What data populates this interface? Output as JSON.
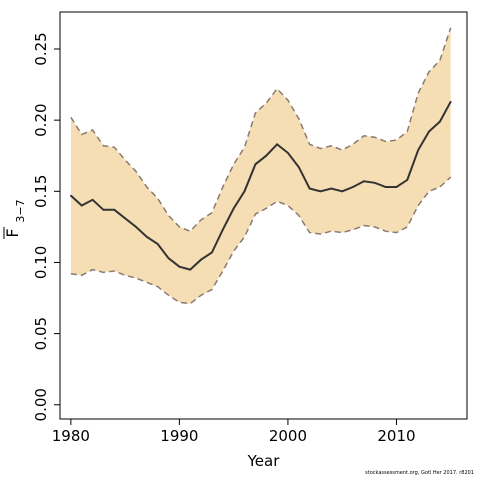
{
  "chart_data": {
    "type": "area",
    "xlabel": "Year",
    "ylabel": "F",
    "ylabel_subscript": "3−7",
    "xlim": [
      1979,
      2016.5
    ],
    "ylim": [
      -0.01,
      0.276
    ],
    "x_ticks": [
      1980,
      1990,
      2000,
      2010
    ],
    "y_ticks": [
      0.0,
      0.05,
      0.1,
      0.15,
      0.2,
      0.25
    ],
    "y_tick_labels": [
      "0.00",
      "0.05",
      "0.10",
      "0.15",
      "0.20",
      "0.25"
    ],
    "grid": false,
    "legend": "none",
    "colors": {
      "band": "#f5deb3",
      "estimate": "#333333",
      "bounds": "#8a7a70"
    },
    "x": [
      1980,
      1981,
      1982,
      1983,
      1984,
      1985,
      1986,
      1987,
      1988,
      1989,
      1990,
      1991,
      1992,
      1993,
      1994,
      1995,
      1996,
      1997,
      1998,
      1999,
      2000,
      2001,
      2002,
      2003,
      2004,
      2005,
      2006,
      2007,
      2008,
      2009,
      2010,
      2011,
      2012,
      2013,
      2014,
      2015
    ],
    "series": [
      {
        "role": "estimate",
        "values": [
          0.147,
          0.14,
          0.144,
          0.137,
          0.137,
          0.131,
          0.125,
          0.118,
          0.113,
          0.103,
          0.097,
          0.095,
          0.102,
          0.107,
          0.123,
          0.138,
          0.15,
          0.169,
          0.175,
          0.183,
          0.177,
          0.167,
          0.152,
          0.15,
          0.152,
          0.15,
          0.153,
          0.157,
          0.156,
          0.153,
          0.153,
          0.158,
          0.179,
          0.192,
          0.199,
          0.213
        ]
      },
      {
        "role": "upper",
        "values": [
          0.202,
          0.19,
          0.193,
          0.182,
          0.181,
          0.172,
          0.164,
          0.153,
          0.145,
          0.133,
          0.125,
          0.122,
          0.13,
          0.135,
          0.153,
          0.169,
          0.181,
          0.205,
          0.212,
          0.222,
          0.214,
          0.201,
          0.183,
          0.18,
          0.182,
          0.179,
          0.183,
          0.189,
          0.188,
          0.185,
          0.186,
          0.192,
          0.219,
          0.234,
          0.242,
          0.265
        ]
      },
      {
        "role": "lower",
        "values": [
          0.092,
          0.091,
          0.095,
          0.093,
          0.094,
          0.091,
          0.089,
          0.086,
          0.083,
          0.077,
          0.072,
          0.071,
          0.077,
          0.081,
          0.094,
          0.108,
          0.118,
          0.134,
          0.138,
          0.143,
          0.14,
          0.133,
          0.121,
          0.12,
          0.122,
          0.121,
          0.123,
          0.126,
          0.125,
          0.122,
          0.121,
          0.125,
          0.14,
          0.15,
          0.153,
          0.16
        ]
      }
    ]
  },
  "footer": {
    "credit": "stockassessment.org, Gotl Her 2017. r8201"
  }
}
